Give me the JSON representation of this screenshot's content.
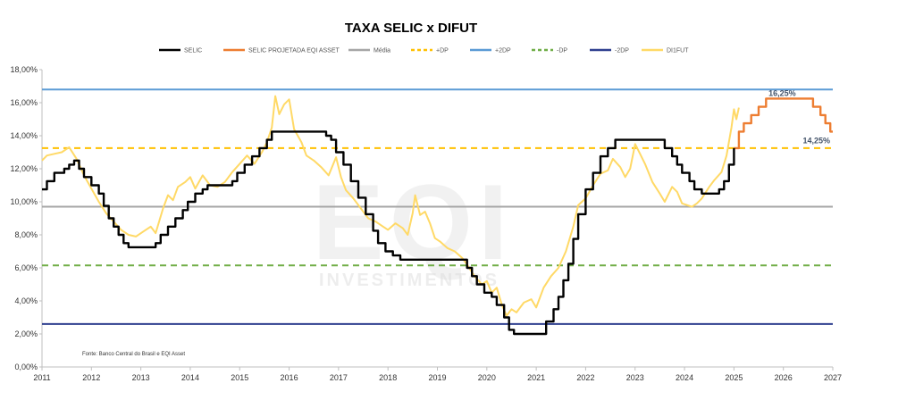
{
  "chart_data": {
    "type": "line",
    "title": "TAXA SELIC x DIFUT",
    "source": "Fonte: Banco Central do Brasil e EQI Asset",
    "watermark": {
      "logo": "EQI",
      "sub": "INVESTIMENTOS"
    },
    "x_ticks": [
      "2011",
      "2012",
      "2013",
      "2014",
      "2015",
      "2016",
      "2017",
      "2018",
      "2019",
      "2020",
      "2021",
      "2022",
      "2023",
      "2024",
      "2025",
      "2026",
      "2027"
    ],
    "y_ticks": [
      "0,00%",
      "2,00%",
      "4,00%",
      "6,00%",
      "8,00%",
      "10,00%",
      "12,00%",
      "14,00%",
      "16,00%",
      "18,00%"
    ],
    "xlim": [
      2011,
      2027
    ],
    "ylim": [
      0,
      18
    ],
    "legend_position": "top",
    "legend": [
      {
        "name": "SELIC",
        "color": "#000000",
        "dash": "solid"
      },
      {
        "name": "SELIC PROJETADA EQI ASSET",
        "color": "#ed7d31",
        "dash": "solid"
      },
      {
        "name": "Média",
        "color": "#a6a6a6",
        "dash": "solid"
      },
      {
        "name": "+DP",
        "color": "#ffc000",
        "dash": "dashed"
      },
      {
        "name": "+2DP",
        "color": "#5b9bd5",
        "dash": "solid"
      },
      {
        "name": "-DP",
        "color": "#70ad47",
        "dash": "dashed"
      },
      {
        "name": "-2DP",
        "color": "#2f3f8f",
        "dash": "solid"
      },
      {
        "name": "DI1FUT",
        "color": "#ffd966",
        "dash": "solid"
      }
    ],
    "reference_lines": [
      {
        "name": "Média",
        "value": 9.7,
        "color": "#a6a6a6",
        "dash": "solid"
      },
      {
        "name": "+DP",
        "value": 13.25,
        "color": "#ffc000",
        "dash": "dashed"
      },
      {
        "name": "+2DP",
        "value": 16.8,
        "color": "#5b9bd5",
        "dash": "solid"
      },
      {
        "name": "-DP",
        "value": 6.15,
        "color": "#70ad47",
        "dash": "dashed"
      },
      {
        "name": "-2DP",
        "value": 2.6,
        "color": "#2f3f8f",
        "dash": "solid"
      }
    ],
    "series": [
      {
        "name": "SELIC",
        "color": "#000000",
        "step": true,
        "points": [
          [
            2011.0,
            10.75
          ],
          [
            2011.1,
            11.25
          ],
          [
            2011.25,
            11.75
          ],
          [
            2011.45,
            12.0
          ],
          [
            2011.55,
            12.25
          ],
          [
            2011.65,
            12.5
          ],
          [
            2011.75,
            12.0
          ],
          [
            2011.85,
            11.5
          ],
          [
            2012.0,
            11.0
          ],
          [
            2012.15,
            10.5
          ],
          [
            2012.25,
            9.75
          ],
          [
            2012.35,
            9.0
          ],
          [
            2012.45,
            8.5
          ],
          [
            2012.55,
            8.0
          ],
          [
            2012.65,
            7.5
          ],
          [
            2012.75,
            7.25
          ],
          [
            2013.3,
            7.5
          ],
          [
            2013.4,
            8.0
          ],
          [
            2013.55,
            8.5
          ],
          [
            2013.7,
            9.0
          ],
          [
            2013.85,
            9.5
          ],
          [
            2013.95,
            10.0
          ],
          [
            2014.1,
            10.5
          ],
          [
            2014.25,
            10.75
          ],
          [
            2014.35,
            11.0
          ],
          [
            2014.85,
            11.25
          ],
          [
            2014.95,
            11.75
          ],
          [
            2015.1,
            12.25
          ],
          [
            2015.25,
            12.75
          ],
          [
            2015.4,
            13.25
          ],
          [
            2015.55,
            13.75
          ],
          [
            2015.65,
            14.25
          ],
          [
            2016.75,
            14.0
          ],
          [
            2016.85,
            13.75
          ],
          [
            2016.95,
            13.0
          ],
          [
            2017.1,
            12.25
          ],
          [
            2017.25,
            11.25
          ],
          [
            2017.4,
            10.25
          ],
          [
            2017.55,
            9.25
          ],
          [
            2017.7,
            8.25
          ],
          [
            2017.8,
            7.5
          ],
          [
            2017.95,
            7.0
          ],
          [
            2018.1,
            6.75
          ],
          [
            2018.25,
            6.5
          ],
          [
            2019.6,
            6.0
          ],
          [
            2019.7,
            5.5
          ],
          [
            2019.8,
            5.0
          ],
          [
            2019.95,
            4.5
          ],
          [
            2020.1,
            4.25
          ],
          [
            2020.2,
            3.75
          ],
          [
            2020.35,
            3.0
          ],
          [
            2020.45,
            2.25
          ],
          [
            2020.55,
            2.0
          ],
          [
            2021.2,
            2.75
          ],
          [
            2021.35,
            3.5
          ],
          [
            2021.45,
            4.25
          ],
          [
            2021.55,
            5.25
          ],
          [
            2021.65,
            6.25
          ],
          [
            2021.75,
            7.75
          ],
          [
            2021.85,
            9.25
          ],
          [
            2022.0,
            10.75
          ],
          [
            2022.15,
            11.75
          ],
          [
            2022.3,
            12.75
          ],
          [
            2022.45,
            13.25
          ],
          [
            2022.6,
            13.75
          ],
          [
            2023.6,
            13.25
          ],
          [
            2023.75,
            12.75
          ],
          [
            2023.85,
            12.25
          ],
          [
            2023.95,
            11.75
          ],
          [
            2024.1,
            11.25
          ],
          [
            2024.2,
            10.75
          ],
          [
            2024.35,
            10.5
          ],
          [
            2024.7,
            10.75
          ],
          [
            2024.8,
            11.25
          ],
          [
            2024.9,
            12.25
          ],
          [
            2025.0,
            13.25
          ]
        ]
      },
      {
        "name": "SELIC PROJETADA EQI ASSET",
        "color": "#ed7d31",
        "step": true,
        "points": [
          [
            2025.0,
            13.25
          ],
          [
            2025.1,
            14.25
          ],
          [
            2025.2,
            14.75
          ],
          [
            2025.35,
            15.25
          ],
          [
            2025.5,
            15.75
          ],
          [
            2025.65,
            16.25
          ],
          [
            2026.6,
            15.75
          ],
          [
            2026.75,
            15.25
          ],
          [
            2026.85,
            14.75
          ],
          [
            2026.95,
            14.25
          ],
          [
            2027.0,
            14.25
          ]
        ]
      },
      {
        "name": "DI1FUT",
        "color": "#ffd966",
        "step": false,
        "points": [
          [
            2011.0,
            12.5
          ],
          [
            2011.1,
            12.8
          ],
          [
            2011.25,
            12.9
          ],
          [
            2011.4,
            13.0
          ],
          [
            2011.55,
            13.3
          ],
          [
            2011.7,
            12.6
          ],
          [
            2011.85,
            11.6
          ],
          [
            2012.0,
            10.8
          ],
          [
            2012.15,
            10.0
          ],
          [
            2012.3,
            9.3
          ],
          [
            2012.45,
            8.8
          ],
          [
            2012.6,
            8.3
          ],
          [
            2012.75,
            8.0
          ],
          [
            2012.9,
            7.9
          ],
          [
            2013.05,
            8.2
          ],
          [
            2013.2,
            8.5
          ],
          [
            2013.3,
            8.1
          ],
          [
            2013.45,
            9.6
          ],
          [
            2013.55,
            10.4
          ],
          [
            2013.65,
            10.1
          ],
          [
            2013.75,
            10.9
          ],
          [
            2013.9,
            11.2
          ],
          [
            2014.0,
            11.5
          ],
          [
            2014.1,
            10.8
          ],
          [
            2014.25,
            11.6
          ],
          [
            2014.4,
            11.0
          ],
          [
            2014.55,
            10.9
          ],
          [
            2014.7,
            11.2
          ],
          [
            2014.85,
            11.8
          ],
          [
            2015.0,
            12.3
          ],
          [
            2015.15,
            12.8
          ],
          [
            2015.3,
            12.3
          ],
          [
            2015.45,
            13.0
          ],
          [
            2015.55,
            13.6
          ],
          [
            2015.65,
            14.5
          ],
          [
            2015.72,
            16.4
          ],
          [
            2015.8,
            15.3
          ],
          [
            2015.9,
            15.9
          ],
          [
            2016.0,
            16.2
          ],
          [
            2016.1,
            14.4
          ],
          [
            2016.25,
            13.6
          ],
          [
            2016.35,
            12.8
          ],
          [
            2016.5,
            12.5
          ],
          [
            2016.65,
            12.1
          ],
          [
            2016.8,
            11.6
          ],
          [
            2016.95,
            12.7
          ],
          [
            2017.05,
            11.5
          ],
          [
            2017.15,
            10.7
          ],
          [
            2017.3,
            10.2
          ],
          [
            2017.45,
            9.6
          ],
          [
            2017.6,
            9.0
          ],
          [
            2017.75,
            8.8
          ],
          [
            2017.9,
            8.5
          ],
          [
            2018.0,
            8.3
          ],
          [
            2018.15,
            8.7
          ],
          [
            2018.3,
            8.4
          ],
          [
            2018.4,
            8.0
          ],
          [
            2018.5,
            9.3
          ],
          [
            2018.55,
            10.4
          ],
          [
            2018.65,
            9.2
          ],
          [
            2018.75,
            9.4
          ],
          [
            2018.85,
            8.7
          ],
          [
            2018.95,
            7.8
          ],
          [
            2019.05,
            7.6
          ],
          [
            2019.2,
            7.2
          ],
          [
            2019.35,
            7.0
          ],
          [
            2019.5,
            6.6
          ],
          [
            2019.6,
            6.2
          ],
          [
            2019.75,
            5.5
          ],
          [
            2019.9,
            5.0
          ],
          [
            2020.0,
            5.2
          ],
          [
            2020.1,
            4.5
          ],
          [
            2020.2,
            4.8
          ],
          [
            2020.3,
            3.8
          ],
          [
            2020.4,
            3.1
          ],
          [
            2020.5,
            3.5
          ],
          [
            2020.6,
            3.3
          ],
          [
            2020.75,
            3.9
          ],
          [
            2020.9,
            4.1
          ],
          [
            2021.0,
            3.6
          ],
          [
            2021.15,
            4.8
          ],
          [
            2021.3,
            5.5
          ],
          [
            2021.45,
            6.0
          ],
          [
            2021.6,
            7.0
          ],
          [
            2021.75,
            8.5
          ],
          [
            2021.85,
            9.8
          ],
          [
            2022.0,
            10.2
          ],
          [
            2022.15,
            11.0
          ],
          [
            2022.3,
            11.7
          ],
          [
            2022.45,
            11.9
          ],
          [
            2022.55,
            12.6
          ],
          [
            2022.7,
            12.1
          ],
          [
            2022.8,
            11.5
          ],
          [
            2022.9,
            12.0
          ],
          [
            2023.0,
            13.5
          ],
          [
            2023.1,
            12.9
          ],
          [
            2023.2,
            12.3
          ],
          [
            2023.35,
            11.2
          ],
          [
            2023.5,
            10.5
          ],
          [
            2023.6,
            10.0
          ],
          [
            2023.75,
            10.9
          ],
          [
            2023.85,
            10.6
          ],
          [
            2023.95,
            9.9
          ],
          [
            2024.05,
            9.8
          ],
          [
            2024.15,
            9.7
          ],
          [
            2024.25,
            9.9
          ],
          [
            2024.35,
            10.2
          ],
          [
            2024.5,
            10.9
          ],
          [
            2024.6,
            11.3
          ],
          [
            2024.75,
            11.8
          ],
          [
            2024.85,
            12.8
          ],
          [
            2024.95,
            14.5
          ],
          [
            2025.0,
            15.6
          ],
          [
            2025.05,
            15.0
          ],
          [
            2025.1,
            15.7
          ]
        ]
      }
    ],
    "annotations": [
      {
        "text": "16,25%",
        "x": 2025.65,
        "y": 16.25
      },
      {
        "text": "14,25%",
        "x": 2027.0,
        "y": 14.25
      }
    ]
  }
}
